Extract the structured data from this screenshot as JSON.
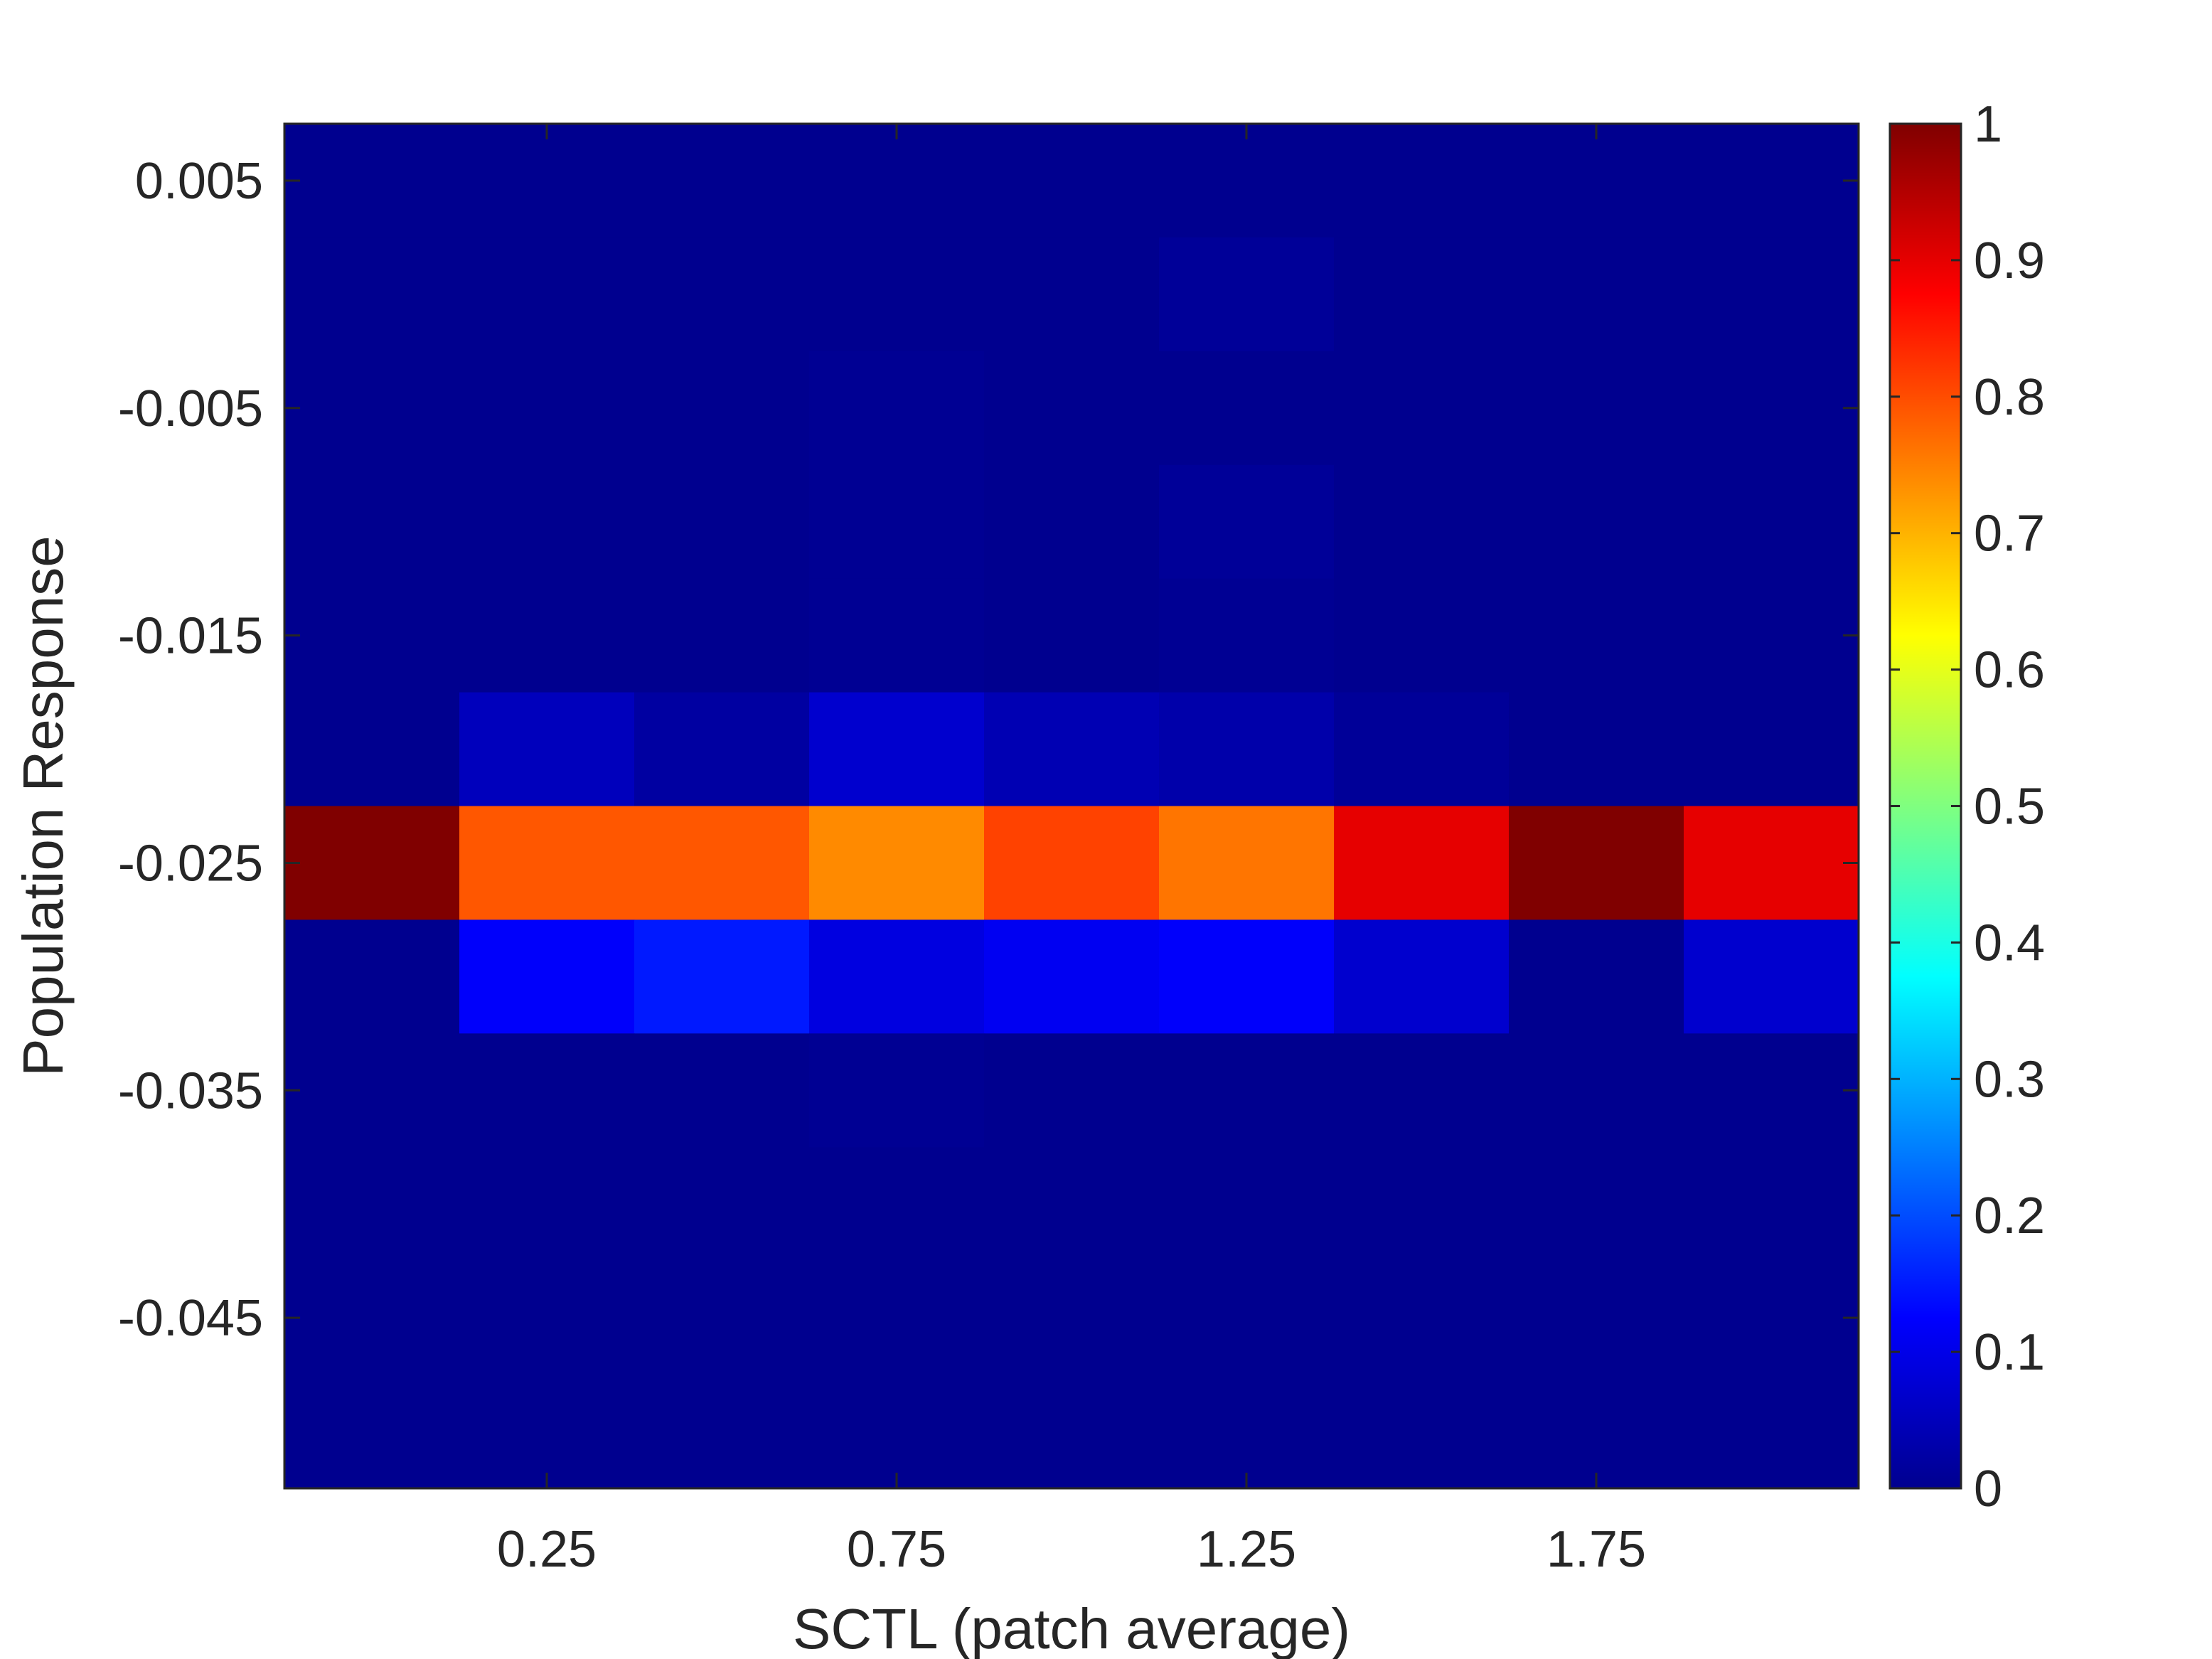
{
  "chart_data": {
    "type": "heatmap",
    "xlabel": "SCTL (patch average)",
    "ylabel": "Population Response",
    "x_tick_labels": [
      "0.25",
      "0.75",
      "1.25",
      "1.75"
    ],
    "x_tick_values": [
      0.25,
      0.75,
      1.25,
      1.75
    ],
    "y_tick_labels": [
      "0.005",
      "-0.005",
      "-0.015",
      "-0.025",
      "-0.035",
      "-0.045"
    ],
    "y_tick_values": [
      0.005,
      -0.005,
      -0.015,
      -0.025,
      -0.035,
      -0.045
    ],
    "x_bin_centers": [
      0,
      0.25,
      0.5,
      0.75,
      1.0,
      1.25,
      1.5,
      1.75,
      2.0
    ],
    "y_bin_centers": [
      0.005,
      0.0,
      -0.005,
      -0.01,
      -0.015,
      -0.02,
      -0.025,
      -0.03,
      -0.035,
      -0.04,
      -0.045,
      -0.05
    ],
    "xlim": [
      -0.125,
      2.125
    ],
    "ylim": [
      -0.0525,
      0.0075
    ],
    "clim": [
      0,
      1
    ],
    "colormap": "jet",
    "colorbar_tick_labels": [
      "0",
      "0.1",
      "0.2",
      "0.3",
      "0.4",
      "0.5",
      "0.6",
      "0.7",
      "0.8",
      "0.9",
      "1"
    ],
    "colorbar_tick_values": [
      0,
      0.1,
      0.2,
      0.3,
      0.4,
      0.5,
      0.6,
      0.7,
      0.8,
      0.9,
      1
    ],
    "values": [
      [
        0,
        0,
        0,
        0,
        0,
        0,
        0,
        0,
        0
      ],
      [
        0,
        0,
        0,
        0,
        0,
        0.01,
        0,
        0,
        0
      ],
      [
        0,
        0,
        0,
        0.005,
        0,
        0,
        0,
        0,
        0
      ],
      [
        0,
        0,
        0,
        0.005,
        0,
        0.01,
        0,
        0,
        0
      ],
      [
        0,
        0,
        0,
        0.005,
        0,
        0.005,
        0,
        0,
        0
      ],
      [
        0,
        0.05,
        0.02,
        0.07,
        0.04,
        0.03,
        0.01,
        0,
        0
      ],
      [
        1,
        0.79,
        0.79,
        0.74,
        0.81,
        0.76,
        0.9,
        1,
        0.9
      ],
      [
        0,
        0.12,
        0.15,
        0.09,
        0.11,
        0.12,
        0.07,
        0,
        0.07
      ],
      [
        0,
        0,
        0,
        0.005,
        0,
        0,
        0,
        0,
        0
      ],
      [
        0,
        0,
        0,
        0,
        0,
        0,
        0,
        0,
        0
      ],
      [
        0,
        0,
        0,
        0,
        0,
        0,
        0,
        0,
        0
      ],
      [
        0,
        0,
        0,
        0,
        0,
        0,
        0,
        0,
        0
      ]
    ]
  }
}
